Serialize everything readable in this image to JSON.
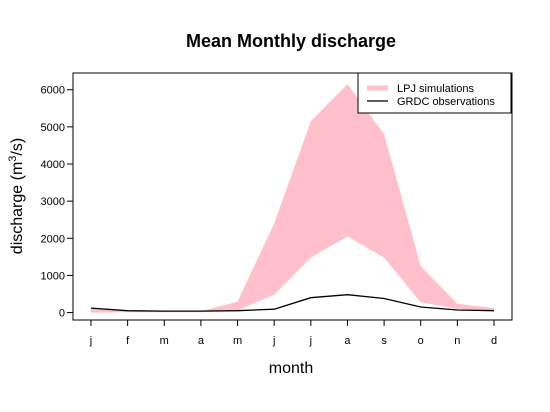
{
  "chart_data": {
    "type": "area",
    "title": "Mean Monthly discharge",
    "xlabel": "month",
    "ylabel_main": "discharge (m",
    "ylabel_sup": "3",
    "ylabel_end": "/s)",
    "categories": [
      "j",
      "f",
      "m",
      "a",
      "m",
      "j",
      "j",
      "a",
      "s",
      "o",
      "n",
      "d"
    ],
    "yticks": [
      "0",
      "1000",
      "2000",
      "3000",
      "4000",
      "5000",
      "6000"
    ],
    "ylim": [
      -200,
      6450
    ],
    "grid": false,
    "legend_position": "top-right",
    "colors": {
      "band": "#ffc0cb",
      "line": "#000000"
    },
    "series": [
      {
        "name": "LPJ simulations",
        "kind": "band",
        "upper": [
          100,
          50,
          40,
          40,
          290,
          2400,
          5150,
          6150,
          4800,
          1250,
          240,
          120
        ],
        "lower": [
          0,
          10,
          10,
          10,
          60,
          480,
          1480,
          2050,
          1480,
          280,
          100,
          60
        ]
      },
      {
        "name": "GRDC observations",
        "kind": "line",
        "values": [
          120,
          50,
          40,
          40,
          50,
          90,
          400,
          480,
          380,
          150,
          70,
          50
        ]
      }
    ]
  }
}
